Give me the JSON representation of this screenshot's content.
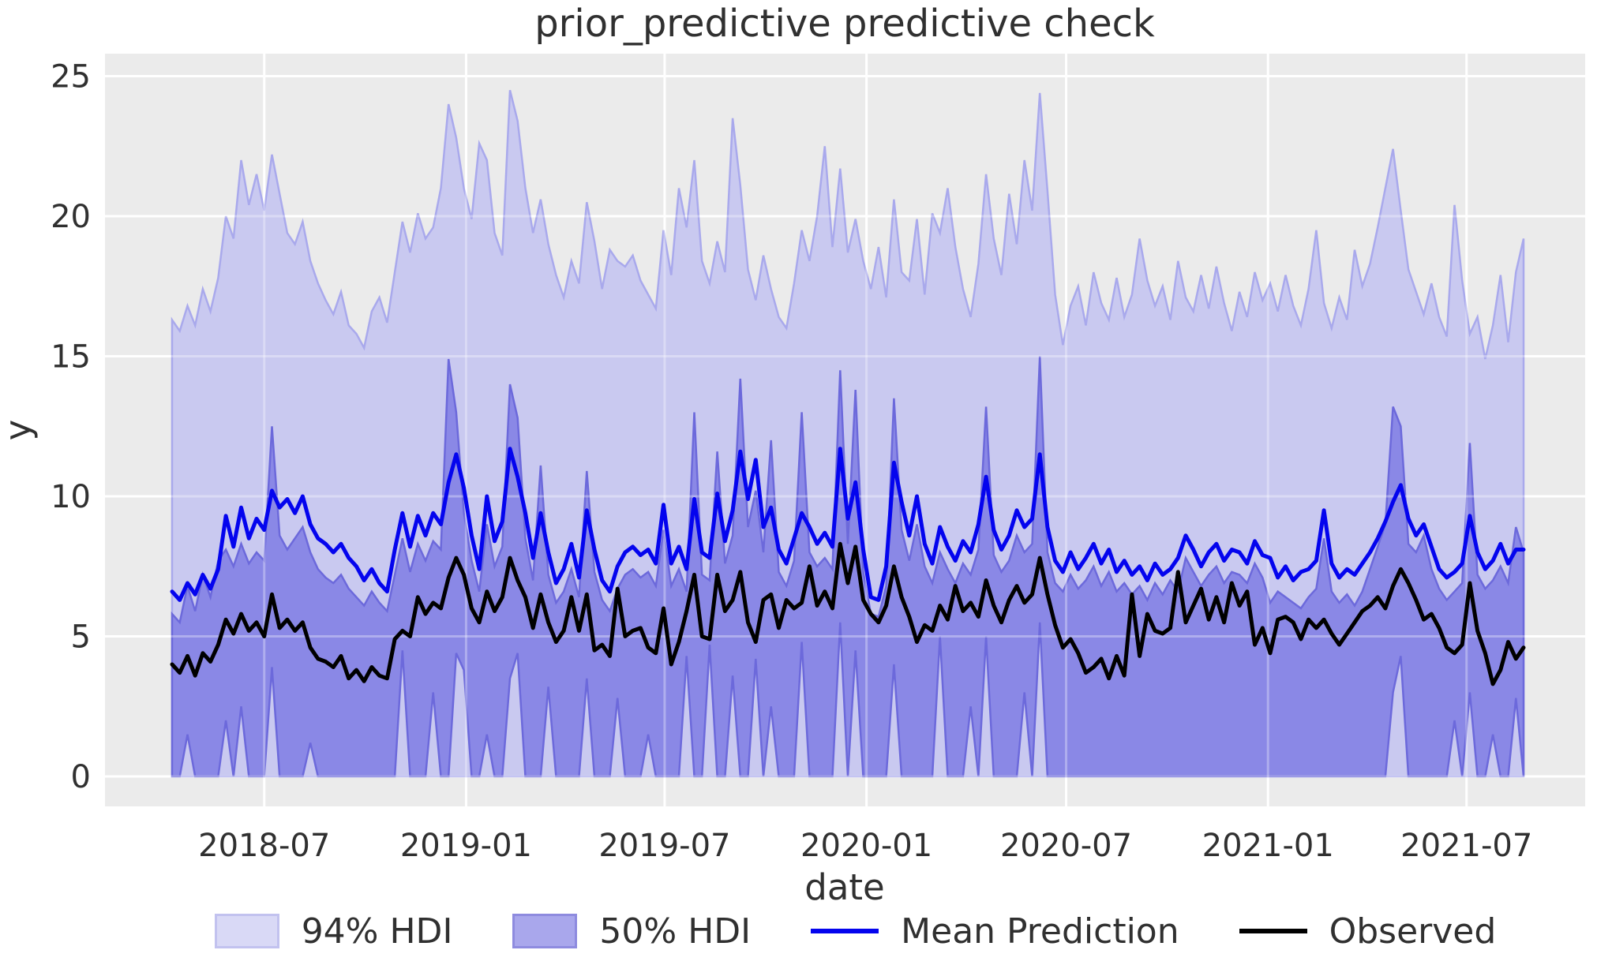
{
  "chart_data": {
    "type": "area",
    "title": "prior_predictive predictive check",
    "xlabel": "date",
    "ylabel": "y",
    "ylim": [
      0,
      25
    ],
    "grid": true,
    "legend_position": "below",
    "x_start_date": "2018-04-08",
    "x_step_days": 7,
    "n_points": 177,
    "x_total_days": 1232,
    "x_tick_labels": [
      "2018-07",
      "2019-01",
      "2019-07",
      "2020-01",
      "2020-07",
      "2021-01",
      "2021-07"
    ],
    "x_tick_day_offsets": [
      84,
      268,
      449,
      633,
      815,
      999,
      1180
    ],
    "y_tick_labels": [
      "0",
      "5",
      "10",
      "15",
      "20",
      "25"
    ],
    "y_tick_values": [
      0,
      5,
      10,
      15,
      20,
      25
    ],
    "colors": {
      "figure_background": "#ffffff",
      "axes_background": "#ebebeb",
      "gridline": "#ffffff",
      "hdi94_fill": "#c9c9f0",
      "hdi94_edge": "#a9a9ec",
      "hdi50_fill": "#8a88e6",
      "hdi50_edge": "#6c69db",
      "mean_line": "#0404ee",
      "observed_line": "#000000",
      "text": "#303030"
    },
    "legend": [
      {
        "label": "94% HDI",
        "type": "patch",
        "fill": "#d9d9f6",
        "edge": "#c2c2ef"
      },
      {
        "label": "50% HDI",
        "type": "patch",
        "fill": "#a9a7ec",
        "edge": "#8e8bdf"
      },
      {
        "label": "Mean Prediction",
        "type": "line",
        "color": "#0404ee"
      },
      {
        "label": "Observed",
        "type": "line",
        "color": "#000000"
      }
    ],
    "series": {
      "hdi94_lower_constant": 0,
      "hdi94_upper": [
        16.3,
        15.9,
        16.8,
        16.1,
        17.4,
        16.6,
        17.8,
        20.0,
        19.2,
        22.0,
        20.4,
        21.5,
        20.2,
        22.2,
        20.8,
        19.4,
        19.0,
        19.8,
        18.4,
        17.6,
        17.0,
        16.5,
        17.3,
        16.1,
        15.8,
        15.3,
        16.6,
        17.1,
        16.2,
        18.0,
        19.8,
        18.7,
        20.1,
        19.2,
        19.6,
        21.0,
        24.0,
        22.8,
        21.0,
        19.9,
        22.6,
        22.0,
        19.4,
        18.6,
        24.5,
        23.4,
        21.0,
        19.4,
        20.6,
        19.0,
        17.9,
        17.1,
        18.4,
        17.6,
        20.5,
        19.1,
        17.4,
        18.8,
        18.4,
        18.2,
        18.6,
        17.7,
        17.2,
        16.7,
        19.5,
        17.9,
        21.0,
        19.6,
        22.0,
        18.4,
        17.6,
        19.1,
        18.0,
        23.5,
        21.1,
        18.1,
        17.0,
        18.6,
        17.4,
        16.4,
        16.0,
        17.6,
        19.5,
        18.4,
        20.0,
        22.5,
        18.9,
        21.7,
        18.7,
        19.9,
        18.4,
        17.4,
        18.9,
        17.1,
        20.6,
        18.0,
        17.7,
        19.9,
        17.2,
        20.1,
        19.4,
        21.0,
        18.9,
        17.4,
        16.4,
        18.3,
        21.5,
        19.2,
        17.9,
        20.8,
        19.0,
        22.0,
        20.2,
        24.4,
        20.9,
        17.2,
        15.4,
        16.8,
        17.5,
        16.1,
        18.0,
        16.9,
        16.3,
        17.8,
        16.4,
        17.2,
        19.2,
        17.7,
        16.8,
        17.5,
        16.3,
        18.4,
        17.1,
        16.6,
        17.9,
        16.7,
        18.2,
        16.9,
        15.9,
        17.3,
        16.4,
        18.0,
        17.0,
        17.6,
        16.6,
        17.9,
        16.8,
        16.1,
        17.4,
        19.5,
        16.9,
        16.0,
        17.1,
        16.3,
        18.8,
        17.5,
        18.3,
        19.6,
        21.0,
        22.4,
        20.2,
        18.1,
        17.3,
        16.5,
        17.6,
        16.4,
        15.7,
        20.4,
        17.7,
        15.8,
        16.4,
        14.9,
        16.1,
        17.9,
        15.5,
        18.0,
        19.2
      ],
      "hdi50_upper": [
        5.8,
        5.5,
        6.8,
        5.9,
        7.2,
        6.4,
        7.7,
        8.1,
        7.5,
        8.3,
        7.6,
        8.0,
        7.7,
        12.5,
        8.6,
        8.1,
        8.5,
        8.9,
        8.0,
        7.4,
        7.1,
        6.9,
        7.2,
        6.7,
        6.4,
        6.1,
        6.6,
        6.2,
        5.9,
        7.2,
        8.5,
        7.3,
        8.3,
        7.7,
        8.4,
        8.1,
        14.9,
        13.0,
        9.4,
        7.7,
        6.6,
        9.0,
        7.5,
        8.2,
        14.0,
        12.8,
        8.5,
        7.0,
        11.1,
        7.2,
        6.2,
        6.6,
        7.4,
        6.4,
        10.9,
        7.3,
        6.3,
        5.9,
        6.7,
        7.2,
        7.4,
        7.1,
        7.3,
        6.8,
        8.8,
        6.8,
        7.4,
        6.6,
        13.0,
        7.2,
        7.0,
        11.6,
        7.6,
        8.6,
        14.2,
        8.9,
        10.2,
        8.0,
        12.0,
        7.3,
        6.8,
        7.7,
        13.0,
        8.0,
        7.5,
        7.8,
        7.4,
        14.5,
        8.3,
        13.8,
        7.3,
        5.8,
        5.7,
        6.8,
        13.5,
        8.8,
        7.7,
        9.0,
        7.5,
        6.9,
        8.0,
        7.4,
        6.9,
        7.6,
        7.2,
        8.1,
        13.2,
        7.9,
        7.3,
        7.7,
        8.6,
        8.0,
        8.3,
        15.0,
        8.0,
        6.9,
        6.6,
        7.2,
        6.7,
        7.0,
        7.5,
        6.8,
        7.3,
        6.6,
        6.9,
        6.5,
        6.8,
        6.3,
        6.9,
        6.5,
        7.0,
        6.6,
        7.8,
        7.3,
        6.8,
        7.2,
        7.5,
        6.9,
        7.3,
        7.2,
        6.9,
        7.6,
        7.1,
        6.2,
        6.6,
        6.4,
        6.2,
        6.0,
        6.4,
        6.7,
        8.5,
        6.6,
        6.2,
        6.5,
        6.1,
        6.6,
        7.4,
        8.2,
        9.0,
        13.2,
        12.5,
        8.3,
        8.0,
        8.6,
        7.4,
        6.7,
        6.3,
        6.6,
        6.9,
        11.9,
        7.2,
        6.7,
        7.0,
        7.5,
        6.9,
        8.9,
        8.0
      ],
      "hdi50_lower": [
        0,
        0,
        1.5,
        0,
        0,
        0,
        0,
        2.0,
        0,
        2.5,
        0,
        0,
        0,
        3.9,
        0,
        0,
        0,
        0,
        1.2,
        0,
        0,
        0,
        0,
        0,
        0,
        0,
        0,
        0,
        0,
        0,
        4.5,
        0,
        0,
        0,
        3.0,
        0,
        0,
        4.4,
        3.8,
        0,
        0,
        1.5,
        0,
        0,
        3.5,
        4.4,
        0,
        0,
        0,
        3.2,
        0,
        0,
        0,
        0,
        3.5,
        0,
        0,
        0,
        2.8,
        0,
        0,
        0,
        1.5,
        0,
        0,
        0,
        0,
        4.3,
        0,
        0,
        4.7,
        0,
        0,
        3.6,
        0,
        0,
        4.2,
        0,
        2.5,
        0,
        0,
        0,
        4.8,
        0,
        0,
        0,
        0,
        5.5,
        0,
        4.5,
        0,
        0,
        0,
        0,
        4.0,
        0,
        0,
        0,
        0,
        0,
        5.0,
        0,
        0,
        0,
        2.5,
        0,
        5.0,
        0,
        0,
        0,
        0,
        3.0,
        0,
        5.5,
        0,
        0,
        0,
        0,
        0,
        0,
        0,
        0,
        0,
        0,
        0,
        0,
        0,
        0,
        0,
        0,
        0,
        0,
        0,
        0,
        0,
        0,
        0,
        0,
        0,
        0,
        0,
        0,
        0,
        0,
        0,
        0,
        0,
        0,
        0,
        0,
        0,
        0,
        0,
        0,
        0,
        0,
        0,
        0,
        0,
        3.0,
        4.3,
        0,
        0,
        0,
        0,
        0,
        0,
        2.0,
        0,
        3.0,
        0,
        0,
        1.5,
        0,
        0,
        2.8,
        0
      ],
      "mean_prediction": [
        6.6,
        6.3,
        6.9,
        6.5,
        7.2,
        6.7,
        7.4,
        9.3,
        8.2,
        9.6,
        8.5,
        9.2,
        8.8,
        10.2,
        9.6,
        9.9,
        9.4,
        10.0,
        9.0,
        8.5,
        8.3,
        8.0,
        8.3,
        7.8,
        7.5,
        7.0,
        7.4,
        6.9,
        6.6,
        8.1,
        9.4,
        8.2,
        9.3,
        8.6,
        9.4,
        9.0,
        10.5,
        11.5,
        10.3,
        8.6,
        7.4,
        10.0,
        8.4,
        9.1,
        11.7,
        10.7,
        9.4,
        7.8,
        9.4,
        8.0,
        6.9,
        7.4,
        8.3,
        7.1,
        9.5,
        8.1,
        7.0,
        6.6,
        7.5,
        8.0,
        8.2,
        7.9,
        8.1,
        7.6,
        9.7,
        7.6,
        8.2,
        7.4,
        9.9,
        8.0,
        7.8,
        10.1,
        8.4,
        9.5,
        11.6,
        9.9,
        11.3,
        8.9,
        9.6,
        8.1,
        7.6,
        8.5,
        9.4,
        8.9,
        8.3,
        8.7,
        8.2,
        11.7,
        9.2,
        10.5,
        8.1,
        6.4,
        6.3,
        7.5,
        11.2,
        9.8,
        8.6,
        10.0,
        8.3,
        7.6,
        8.9,
        8.2,
        7.7,
        8.4,
        8.0,
        9.0,
        10.7,
        8.8,
        8.1,
        8.6,
        9.5,
        8.9,
        9.2,
        11.5,
        8.9,
        7.7,
        7.3,
        8.0,
        7.4,
        7.8,
        8.3,
        7.6,
        8.1,
        7.3,
        7.7,
        7.2,
        7.5,
        7.0,
        7.6,
        7.2,
        7.4,
        7.8,
        8.6,
        8.1,
        7.5,
        8.0,
        8.3,
        7.7,
        8.1,
        8.0,
        7.6,
        8.4,
        7.9,
        7.8,
        7.1,
        7.5,
        7.0,
        7.3,
        7.4,
        7.7,
        9.5,
        7.6,
        7.1,
        7.4,
        7.2,
        7.6,
        8.0,
        8.5,
        9.1,
        9.8,
        10.4,
        9.2,
        8.6,
        9.0,
        8.2,
        7.4,
        7.1,
        7.3,
        7.6,
        9.3,
        8.0,
        7.4,
        7.7,
        8.3,
        7.6,
        8.1,
        8.1
      ],
      "observed": [
        4.0,
        3.7,
        4.3,
        3.6,
        4.4,
        4.1,
        4.7,
        5.6,
        5.1,
        5.8,
        5.2,
        5.5,
        5.0,
        6.5,
        5.3,
        5.6,
        5.2,
        5.5,
        4.6,
        4.2,
        4.1,
        3.9,
        4.3,
        3.5,
        3.8,
        3.4,
        3.9,
        3.6,
        3.5,
        4.9,
        5.2,
        5.0,
        6.4,
        5.8,
        6.2,
        6.0,
        7.1,
        7.8,
        7.2,
        6.0,
        5.5,
        6.6,
        5.9,
        6.4,
        7.8,
        7.0,
        6.4,
        5.3,
        6.5,
        5.5,
        4.8,
        5.2,
        6.4,
        5.2,
        6.5,
        4.5,
        4.7,
        4.3,
        6.7,
        5.0,
        5.2,
        5.3,
        4.6,
        4.4,
        6.0,
        4.0,
        4.8,
        5.9,
        7.2,
        5.0,
        4.9,
        7.2,
        5.9,
        6.3,
        7.3,
        5.5,
        4.8,
        6.3,
        6.5,
        5.3,
        6.3,
        6.0,
        6.2,
        7.5,
        6.1,
        6.6,
        6.0,
        8.3,
        6.9,
        8.2,
        6.3,
        5.8,
        5.5,
        6.1,
        7.5,
        6.4,
        5.7,
        4.8,
        5.4,
        5.2,
        6.1,
        5.6,
        6.8,
        5.9,
        6.2,
        5.7,
        7.0,
        6.1,
        5.5,
        6.3,
        6.8,
        6.2,
        6.5,
        7.8,
        6.5,
        5.4,
        4.6,
        4.9,
        4.4,
        3.7,
        3.9,
        4.2,
        3.5,
        4.3,
        3.6,
        6.5,
        4.3,
        5.8,
        5.2,
        5.1,
        5.3,
        7.3,
        5.5,
        6.1,
        6.7,
        5.6,
        6.4,
        5.5,
        6.9,
        6.1,
        6.6,
        4.7,
        5.3,
        4.4,
        5.6,
        5.7,
        5.5,
        4.9,
        5.6,
        5.3,
        5.6,
        5.1,
        4.7,
        5.1,
        5.5,
        5.9,
        6.1,
        6.4,
        6.0,
        6.8,
        7.4,
        6.9,
        6.3,
        5.6,
        5.8,
        5.3,
        4.6,
        4.4,
        4.7,
        6.9,
        5.2,
        4.4,
        3.3,
        3.8,
        4.8,
        4.2,
        4.6
      ]
    }
  }
}
